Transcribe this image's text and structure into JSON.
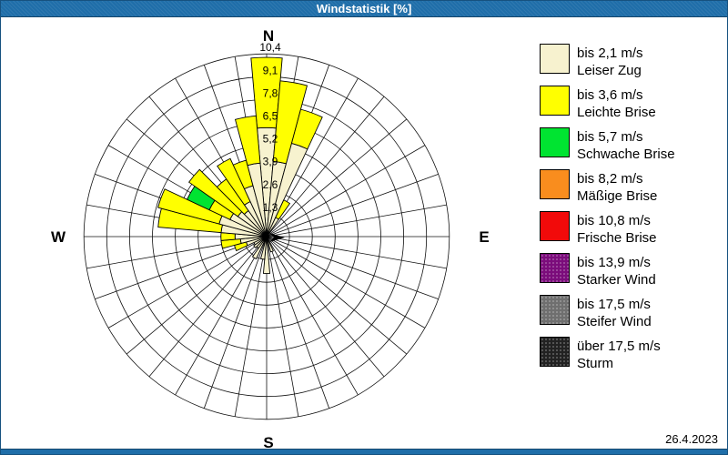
{
  "window": {
    "title": "Windstatistik [%]"
  },
  "footer": {
    "date": "26.4.2023"
  },
  "legend": {
    "items": [
      {
        "speed": "bis 2,1 m/s",
        "name": "Leiser Zug",
        "color": "#F7F2CF",
        "dotted": false
      },
      {
        "speed": "bis 3,6 m/s",
        "name": "Leichte Brise",
        "color": "#FFFF00",
        "dotted": false
      },
      {
        "speed": "bis 5,7 m/s",
        "name": "Schwache Brise",
        "color": "#00E431",
        "dotted": false
      },
      {
        "speed": "bis 8,2 m/s",
        "name": "Mäßige Brise",
        "color": "#F98D1E",
        "dotted": false
      },
      {
        "speed": "bis 10,8 m/s",
        "name": "Frische Brise",
        "color": "#F20A0A",
        "dotted": false
      },
      {
        "speed": "bis 13,9 m/s",
        "name": "Starker Wind",
        "color": "#7B0C7B",
        "dotted": true
      },
      {
        "speed": "bis 17,5 m/s",
        "name": "Steifer Wind",
        "color": "#6F6F6F",
        "dotted": true
      },
      {
        "speed": "über 17,5 m/s",
        "name": "Sturm",
        "color": "#222222",
        "dotted": true
      }
    ]
  },
  "chart_data": {
    "type": "windrose",
    "title": "Windstatistik [%]",
    "unit": "%",
    "sector_width_deg": 10,
    "num_sectors": 36,
    "ring_step": 1.3,
    "max_value": 10.4,
    "ring_labels": [
      "1,3",
      "2,6",
      "3,9",
      "5,2",
      "6,5",
      "7,8",
      "9,1",
      "10,4"
    ],
    "compass": {
      "n": "N",
      "e": "E",
      "s": "S",
      "w": "W"
    },
    "class_colors": [
      "#F7F2CF",
      "#FFFF00",
      "#00E431",
      "#F98D1E",
      "#F20A0A",
      "#7B0C7B",
      "#6F6F6F",
      "#222222"
    ],
    "center_arrow_direction": "E",
    "bars": [
      {
        "dir": 0,
        "segments": [
          {
            "class": 0,
            "to": 6.2
          },
          {
            "class": 1,
            "to": 10.2
          }
        ]
      },
      {
        "dir": 10,
        "segments": [
          {
            "class": 0,
            "to": 4.3
          },
          {
            "class": 1,
            "to": 8.9
          }
        ]
      },
      {
        "dir": 20,
        "segments": [
          {
            "class": 0,
            "to": 5.5
          },
          {
            "class": 1,
            "to": 7.5
          }
        ]
      },
      {
        "dir": 30,
        "segments": [
          {
            "class": 0,
            "to": 1.2
          },
          {
            "class": 1,
            "to": 2.3
          }
        ]
      },
      {
        "dir": 160,
        "segments": [
          {
            "class": 0,
            "to": 0.9
          }
        ]
      },
      {
        "dir": 180,
        "segments": [
          {
            "class": 0,
            "to": 2.1
          }
        ]
      },
      {
        "dir": 190,
        "segments": [
          {
            "class": 0,
            "to": 1.3
          }
        ]
      },
      {
        "dir": 210,
        "segments": [
          {
            "class": 0,
            "to": 1.4
          }
        ]
      },
      {
        "dir": 220,
        "segments": [
          {
            "class": 0,
            "to": 0.8
          }
        ]
      },
      {
        "dir": 230,
        "segments": [
          {
            "class": 0,
            "to": 0.9
          }
        ]
      },
      {
        "dir": 240,
        "segments": [
          {
            "class": 0,
            "to": 0.8
          }
        ]
      },
      {
        "dir": 250,
        "segments": [
          {
            "class": 0,
            "to": 1.2
          },
          {
            "class": 1,
            "to": 1.9
          }
        ]
      },
      {
        "dir": 260,
        "segments": [
          {
            "class": 0,
            "to": 1.5
          },
          {
            "class": 1,
            "to": 2.6
          }
        ]
      },
      {
        "dir": 270,
        "segments": [
          {
            "class": 0,
            "to": 1.8
          },
          {
            "class": 1,
            "to": 2.6
          }
        ]
      },
      {
        "dir": 280,
        "segments": [
          {
            "class": 0,
            "to": 2.6
          },
          {
            "class": 1,
            "to": 6.2
          }
        ]
      },
      {
        "dir": 290,
        "segments": [
          {
            "class": 0,
            "to": 2.8
          },
          {
            "class": 1,
            "to": 6.4
          }
        ]
      },
      {
        "dir": 300,
        "segments": [
          {
            "class": 0,
            "to": 2.3
          },
          {
            "class": 1,
            "to": 3.6
          },
          {
            "class": 2,
            "to": 5.0
          }
        ]
      },
      {
        "dir": 310,
        "segments": [
          {
            "class": 0,
            "to": 2.0
          },
          {
            "class": 1,
            "to": 5.4
          }
        ]
      },
      {
        "dir": 320,
        "segments": [
          {
            "class": 0,
            "to": 1.8
          },
          {
            "class": 1,
            "to": 4.0
          }
        ]
      },
      {
        "dir": 330,
        "segments": [
          {
            "class": 0,
            "to": 2.2
          },
          {
            "class": 1,
            "to": 4.9
          }
        ]
      },
      {
        "dir": 340,
        "segments": [
          {
            "class": 0,
            "to": 3.0
          },
          {
            "class": 1,
            "to": 4.5
          }
        ]
      },
      {
        "dir": 350,
        "segments": [
          {
            "class": 0,
            "to": 4.2
          },
          {
            "class": 1,
            "to": 6.9
          }
        ]
      }
    ]
  }
}
